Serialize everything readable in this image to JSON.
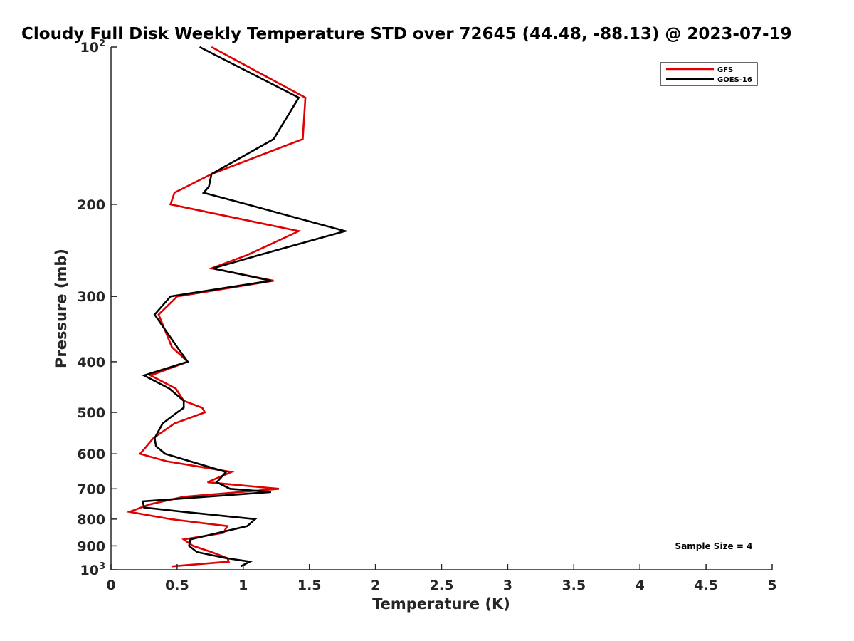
{
  "chart_data": {
    "type": "line",
    "title": "Cloudy Full Disk Weekly Temperature STD over 72645 (44.48, -88.13) @ 2023-07-19",
    "xlabel": "Temperature (K)",
    "ylabel": "Pressure (mb)",
    "xlim": [
      0,
      5
    ],
    "ylim": [
      100,
      1000
    ],
    "y_scale": "log",
    "y_reversed": true,
    "x_ticks": [
      "0",
      "0.5",
      "1",
      "1.5",
      "2",
      "2.5",
      "3",
      "3.5",
      "4",
      "4.5",
      "5"
    ],
    "y_ticks": [
      {
        "value": 100,
        "base": "10",
        "exp": "2"
      },
      {
        "value": 200,
        "label": "200"
      },
      {
        "value": 300,
        "label": "300"
      },
      {
        "value": 400,
        "label": "400"
      },
      {
        "value": 500,
        "label": "500"
      },
      {
        "value": 600,
        "label": "600"
      },
      {
        "value": 700,
        "label": "700"
      },
      {
        "value": 800,
        "label": "800"
      },
      {
        "value": 900,
        "label": "900"
      },
      {
        "value": 1000,
        "base": "10",
        "exp": "3"
      }
    ],
    "legend_position": "top-right",
    "grid": false,
    "annotation": "Sample Size = 4",
    "series": [
      {
        "name": "GFS",
        "color": "#e00000",
        "points": [
          [
            0.76,
            100
          ],
          [
            1.47,
            125
          ],
          [
            1.45,
            150
          ],
          [
            0.76,
            175
          ],
          [
            0.48,
            190
          ],
          [
            0.45,
            200
          ],
          [
            1.42,
            225
          ],
          [
            1.03,
            250
          ],
          [
            0.76,
            265
          ],
          [
            1.23,
            280
          ],
          [
            0.5,
            300
          ],
          [
            0.36,
            325
          ],
          [
            0.46,
            375
          ],
          [
            0.58,
            400
          ],
          [
            0.3,
            425
          ],
          [
            0.49,
            450
          ],
          [
            0.55,
            475
          ],
          [
            0.69,
            490
          ],
          [
            0.71,
            500
          ],
          [
            0.48,
            525
          ],
          [
            0.32,
            560
          ],
          [
            0.22,
            600
          ],
          [
            0.42,
            620
          ],
          [
            0.91,
            650
          ],
          [
            0.73,
            680
          ],
          [
            1.27,
            700
          ],
          [
            0.55,
            725
          ],
          [
            0.29,
            750
          ],
          [
            0.14,
            775
          ],
          [
            0.45,
            800
          ],
          [
            0.88,
            825
          ],
          [
            0.85,
            850
          ],
          [
            0.55,
            875
          ],
          [
            0.62,
            900
          ],
          [
            0.76,
            925
          ],
          [
            0.88,
            950
          ],
          [
            0.89,
            965
          ],
          [
            0.46,
            985
          ]
        ]
      },
      {
        "name": "GOES-16",
        "color": "#000000",
        "points": [
          [
            0.67,
            100
          ],
          [
            1.42,
            125
          ],
          [
            1.23,
            150
          ],
          [
            0.76,
            175
          ],
          [
            0.74,
            185
          ],
          [
            0.7,
            190
          ],
          [
            1.03,
            200
          ],
          [
            1.77,
            225
          ],
          [
            1.12,
            250
          ],
          [
            0.77,
            265
          ],
          [
            1.21,
            280
          ],
          [
            0.45,
            300
          ],
          [
            0.33,
            325
          ],
          [
            0.5,
            375
          ],
          [
            0.58,
            400
          ],
          [
            0.25,
            425
          ],
          [
            0.44,
            450
          ],
          [
            0.55,
            475
          ],
          [
            0.55,
            490
          ],
          [
            0.5,
            500
          ],
          [
            0.39,
            525
          ],
          [
            0.33,
            560
          ],
          [
            0.34,
            580
          ],
          [
            0.41,
            600
          ],
          [
            0.87,
            650
          ],
          [
            0.8,
            680
          ],
          [
            0.9,
            700
          ],
          [
            1.21,
            710
          ],
          [
            0.24,
            740
          ],
          [
            0.25,
            760
          ],
          [
            0.55,
            775
          ],
          [
            1.09,
            800
          ],
          [
            1.03,
            825
          ],
          [
            0.6,
            875
          ],
          [
            0.59,
            900
          ],
          [
            0.65,
            925
          ],
          [
            0.87,
            950
          ],
          [
            1.05,
            965
          ],
          [
            0.98,
            985
          ]
        ]
      }
    ]
  }
}
